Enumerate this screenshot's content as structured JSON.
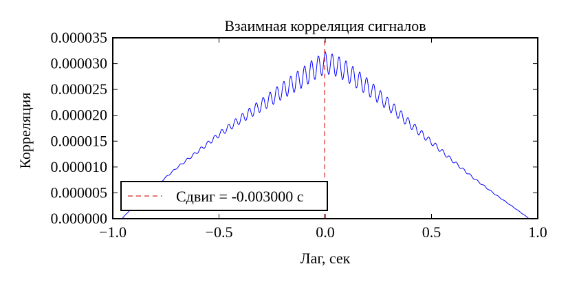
{
  "chart_data": {
    "type": "line",
    "title": "Взаимная корреляция сигналов",
    "xlabel": "Лаг, сек",
    "ylabel": "Корреляция",
    "xlim": [
      -1.0,
      1.0
    ],
    "ylim": [
      0.0,
      3.5e-05
    ],
    "x_ticks": [
      -1.0,
      -0.5,
      0.0,
      0.5,
      1.0
    ],
    "x_tick_labels": [
      "−1.0",
      "−0.5",
      "0.0",
      "0.5",
      "1.0"
    ],
    "y_ticks": [
      0.0,
      5e-06,
      1e-05,
      1.5e-05,
      2e-05,
      2.5e-05,
      3e-05,
      3.5e-05
    ],
    "y_tick_labels": [
      "0.000000",
      "0.000005",
      "0.000010",
      "0.000015",
      "0.000020",
      "0.000025",
      "0.000030",
      "0.000035"
    ],
    "grid": false,
    "legend_position": "lower-left",
    "series": [
      {
        "color": "#0000ff",
        "x": [
          -1.0,
          -0.9,
          -0.8,
          -0.7,
          -0.6,
          -0.5,
          -0.4,
          -0.3,
          -0.2,
          -0.1,
          -0.05,
          0.0,
          0.05,
          0.1,
          0.2,
          0.3,
          0.4,
          0.5,
          0.6,
          0.7,
          0.8,
          0.9,
          0.96
        ],
        "y": [
          -1.9e-06,
          2.5e-06,
          6.2e-06,
          9.8e-06,
          1.3e-05,
          1.63e-05,
          1.92e-05,
          2.2e-05,
          2.48e-05,
          2.75e-05,
          2.9e-05,
          3.02e-05,
          2.96e-05,
          2.85e-05,
          2.55e-05,
          2.2e-05,
          1.83e-05,
          1.48e-05,
          1.12e-05,
          7.8e-06,
          4.7e-06,
          1.8e-06,
          0.0
        ]
      },
      {
        "name": "Сдвиг = -0.003000 с",
        "color": "#d62728",
        "style": "dashed",
        "x": [
          -0.003,
          -0.003
        ],
        "y": [
          0.0,
          3.5e-05
        ]
      }
    ]
  }
}
